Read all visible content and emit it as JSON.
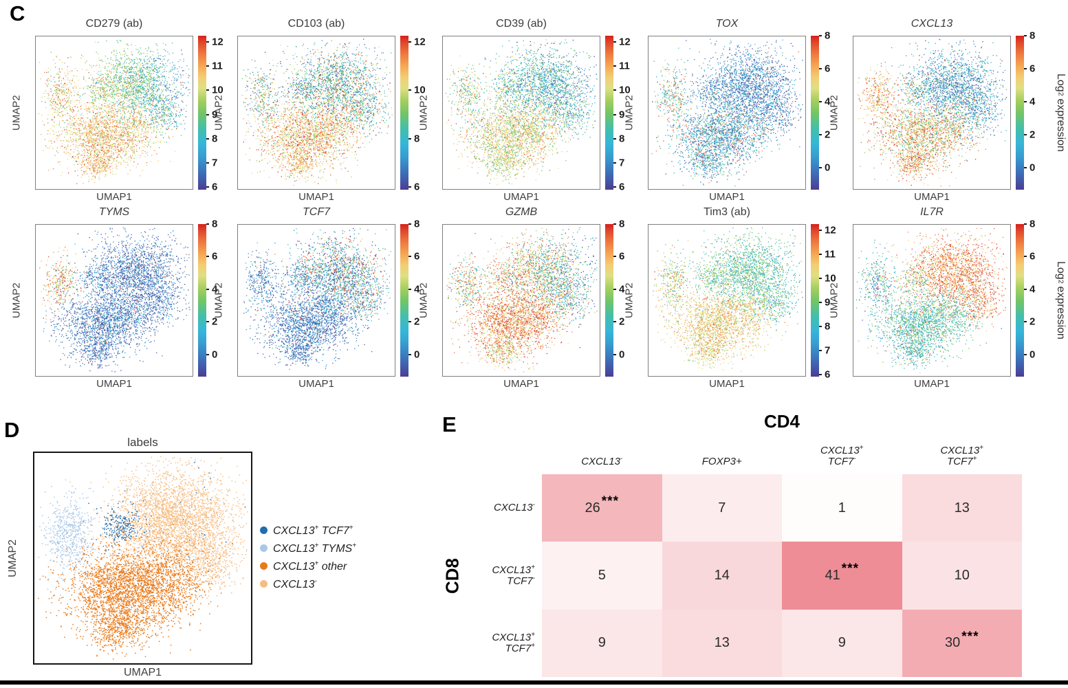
{
  "labels": {
    "c": "C",
    "d": "D",
    "e": "E"
  },
  "axes": {
    "x": "UMAP1",
    "y": "UMAP2"
  },
  "colorbar_label": {
    "pre": "Log",
    "sub": "2",
    "post": " expression"
  },
  "colormap_stops": [
    [
      0.0,
      "#4b3d94"
    ],
    [
      0.12,
      "#3c73bb"
    ],
    [
      0.22,
      "#379fd0"
    ],
    [
      0.3,
      "#36b6d9"
    ],
    [
      0.4,
      "#44bfa8"
    ],
    [
      0.5,
      "#74c565"
    ],
    [
      0.58,
      "#a5cf5e"
    ],
    [
      0.66,
      "#dfdf85"
    ],
    [
      0.73,
      "#f3cd73"
    ],
    [
      0.8,
      "#f5a955"
    ],
    [
      0.88,
      "#ef7a40"
    ],
    [
      0.95,
      "#e04c2c"
    ],
    [
      1.0,
      "#d7201d"
    ]
  ],
  "chart_data": {
    "expression_panels": [
      {
        "title": "CD279 (ab)",
        "italic": false,
        "colorbar_ticks": [
          12,
          11,
          10,
          9,
          8,
          7,
          6
        ],
        "bar_range": [
          5.9,
          12.25
        ],
        "show_colorbar_label": false,
        "regions": {
          "upper": [
            0.45,
            0.15,
            0.02
          ],
          "lower": [
            0.74,
            0.12,
            0.03
          ],
          "nw": [
            0.7,
            0.15,
            0.0
          ],
          "tip": [
            0.77,
            0.1,
            0.0
          ],
          "neck": [
            0.55,
            0.2,
            0.0
          ]
        },
        "upper_gradient": -0.6
      },
      {
        "title": "CD103 (ab)",
        "italic": false,
        "colorbar_ticks": [
          12,
          10,
          8,
          6
        ],
        "bar_range": [
          5.9,
          12.25
        ],
        "show_colorbar_label": false,
        "regions": {
          "upper": [
            0.38,
            0.25,
            0.06
          ],
          "lower": [
            0.76,
            0.15,
            0.02
          ],
          "nw": [
            0.45,
            0.3,
            0.05
          ],
          "tip": [
            0.78,
            0.12,
            0.0
          ],
          "neck": [
            0.35,
            0.25,
            0.03
          ]
        },
        "upper_gradient": 0
      },
      {
        "title": "CD39 (ab)",
        "italic": false,
        "colorbar_ticks": [
          12,
          11,
          10,
          9,
          8,
          7,
          6
        ],
        "bar_range": [
          5.9,
          12.25
        ],
        "show_colorbar_label": false,
        "regions": {
          "upper": [
            0.34,
            0.18,
            0.01
          ],
          "lower": [
            0.66,
            0.14,
            0.02
          ],
          "nw": [
            0.55,
            0.2,
            0.02
          ],
          "tip": [
            0.62,
            0.12,
            0.0
          ],
          "neck": [
            0.4,
            0.2,
            0.0
          ]
        },
        "upper_gradient": -0.2
      },
      {
        "title": "TOX",
        "italic": true,
        "colorbar_ticks": [
          8,
          6,
          4,
          2,
          0
        ],
        "bar_range": [
          -1.35,
          8
        ],
        "show_colorbar_label": false,
        "regions": {
          "upper": [
            0.16,
            0.1,
            0.03
          ],
          "lower": [
            0.25,
            0.15,
            0.1
          ],
          "nw": [
            0.45,
            0.25,
            0.08
          ],
          "tip": [
            0.28,
            0.15,
            0.08
          ],
          "neck": [
            0.2,
            0.15,
            0.05
          ]
        },
        "upper_gradient": 0
      },
      {
        "title": "CXCL13",
        "italic": true,
        "colorbar_ticks": [
          8,
          6,
          4,
          2,
          0
        ],
        "bar_range": [
          -1.35,
          8
        ],
        "show_colorbar_label": true,
        "regions": {
          "upper": [
            0.22,
            0.15,
            0.04
          ],
          "lower": [
            0.7,
            0.2,
            0.08
          ],
          "nw": [
            0.78,
            0.15,
            0.05
          ],
          "tip": [
            0.82,
            0.12,
            0.05
          ],
          "neck": [
            0.45,
            0.25,
            0.05
          ]
        },
        "upper_gradient": 0
      },
      {
        "title": "TYMS",
        "italic": true,
        "colorbar_ticks": [
          8,
          6,
          4,
          2,
          0
        ],
        "bar_range": [
          -1.35,
          8
        ],
        "show_colorbar_label": false,
        "regions": {
          "upper": [
            0.12,
            0.08,
            0.015
          ],
          "lower": [
            0.13,
            0.09,
            0.02
          ],
          "nw": [
            0.72,
            0.22,
            0.1
          ],
          "tip": [
            0.12,
            0.08,
            0.01
          ],
          "neck": [
            0.15,
            0.1,
            0.02
          ]
        },
        "upper_gradient": 0
      },
      {
        "title": "TCF7",
        "italic": true,
        "colorbar_ticks": [
          8,
          6,
          4,
          2,
          0
        ],
        "bar_range": [
          -1.35,
          8
        ],
        "show_colorbar_label": false,
        "regions": {
          "upper": [
            0.25,
            0.22,
            0.15
          ],
          "lower": [
            0.13,
            0.1,
            0.02
          ],
          "nw": [
            0.15,
            0.12,
            0.02
          ],
          "tip": [
            0.12,
            0.08,
            0.01
          ],
          "neck": [
            0.2,
            0.15,
            0.05
          ]
        },
        "upper_gradient": 0.15
      },
      {
        "title": "GZMB",
        "italic": true,
        "colorbar_ticks": [
          8,
          6,
          4,
          2,
          0
        ],
        "bar_range": [
          -1.35,
          8
        ],
        "show_colorbar_label": false,
        "regions": {
          "upper": [
            0.55,
            0.25,
            0.05
          ],
          "lower": [
            0.85,
            0.15,
            0.0
          ],
          "nw": [
            0.6,
            0.25,
            0.05
          ],
          "tip": [
            0.72,
            0.15,
            0.0
          ],
          "neck": [
            0.6,
            0.25,
            0.0
          ]
        },
        "upper_gradient": -0.9
      },
      {
        "title": "Tim3 (ab)",
        "italic": false,
        "colorbar_ticks": [
          12,
          11,
          10,
          9,
          8,
          7,
          6
        ],
        "bar_range": [
          5.9,
          12.25
        ],
        "show_colorbar_label": false,
        "regions": {
          "upper": [
            0.42,
            0.12,
            0.01
          ],
          "lower": [
            0.72,
            0.1,
            0.01
          ],
          "nw": [
            0.6,
            0.18,
            0.02
          ],
          "tip": [
            0.68,
            0.1,
            0.0
          ],
          "neck": [
            0.5,
            0.15,
            0.0
          ]
        },
        "upper_gradient": -0.15
      },
      {
        "title": "IL7R",
        "italic": true,
        "colorbar_ticks": [
          8,
          6,
          4,
          2,
          0
        ],
        "bar_range": [
          -1.35,
          8
        ],
        "show_colorbar_label": true,
        "regions": {
          "upper": [
            0.85,
            0.12,
            0.0
          ],
          "lower": [
            0.38,
            0.12,
            0.03
          ],
          "nw": [
            0.32,
            0.2,
            0.05
          ],
          "tip": [
            0.35,
            0.12,
            0.02
          ],
          "neck": [
            0.5,
            0.2,
            0.05
          ]
        },
        "upper_gradient": 0.1
      }
    ],
    "labels_panel": {
      "title": "labels",
      "legend": [
        {
          "key": "tcf7",
          "color": "#1f6eb0",
          "parts": [
            {
              "text": "CXCL13",
              "sup": "+"
            },
            {
              "text": " TCF7",
              "sup": "+"
            }
          ]
        },
        {
          "key": "tyms",
          "color": "#a9c7e8",
          "parts": [
            {
              "text": "CXCL13",
              "sup": "+"
            },
            {
              "text": " TYMS",
              "sup": "+"
            }
          ]
        },
        {
          "key": "other",
          "color": "#e97a1a",
          "parts": [
            {
              "text": "CXCL13",
              "sup": "+"
            },
            {
              "text": " other",
              "sup": ""
            }
          ]
        },
        {
          "key": "neg",
          "color": "#f6bd82",
          "parts": [
            {
              "text": "CXCL13",
              "sup": "-"
            }
          ]
        }
      ],
      "region_colors": {
        "upper": "#f6bd82",
        "lower": "#e97a1a",
        "tip": "#e97a1a",
        "nw": "#a9c7e8",
        "neck": "#1f6eb0"
      },
      "stray_color": "#1f6eb0"
    },
    "heatmap": {
      "col_group": "CD4",
      "row_group": "CD8",
      "columns": [
        {
          "lines": [
            [
              {
                "text": "CXCL13",
                "sup": "-"
              }
            ]
          ]
        },
        {
          "lines": [
            [
              {
                "text": "FOXP3+",
                "sup": ""
              }
            ]
          ]
        },
        {
          "lines": [
            [
              {
                "text": "CXCL13",
                "sup": "+"
              }
            ],
            [
              {
                "text": "TCF7",
                "sup": "-"
              }
            ]
          ]
        },
        {
          "lines": [
            [
              {
                "text": "CXCL13",
                "sup": "+"
              }
            ],
            [
              {
                "text": "TCF7",
                "sup": "+"
              }
            ]
          ]
        }
      ],
      "rows": [
        {
          "lines": [
            [
              {
                "text": "CXCL13",
                "sup": "-"
              }
            ]
          ]
        },
        {
          "lines": [
            [
              {
                "text": "CXCL13",
                "sup": "+"
              }
            ],
            [
              {
                "text": "TCF7",
                "sup": "-"
              }
            ]
          ]
        },
        {
          "lines": [
            [
              {
                "text": "CXCL13",
                "sup": "+"
              }
            ],
            [
              {
                "text": "TCF7",
                "sup": "+"
              }
            ]
          ]
        }
      ],
      "values": [
        [
          26,
          7,
          1,
          13
        ],
        [
          5,
          14,
          41,
          10
        ],
        [
          9,
          13,
          9,
          30
        ]
      ],
      "significance": [
        [
          true,
          false,
          false,
          false
        ],
        [
          false,
          false,
          true,
          false
        ],
        [
          false,
          false,
          false,
          true
        ]
      ],
      "sig_marker": "***",
      "min_color": "#ffffff",
      "max_color": "#ee8d96"
    }
  }
}
